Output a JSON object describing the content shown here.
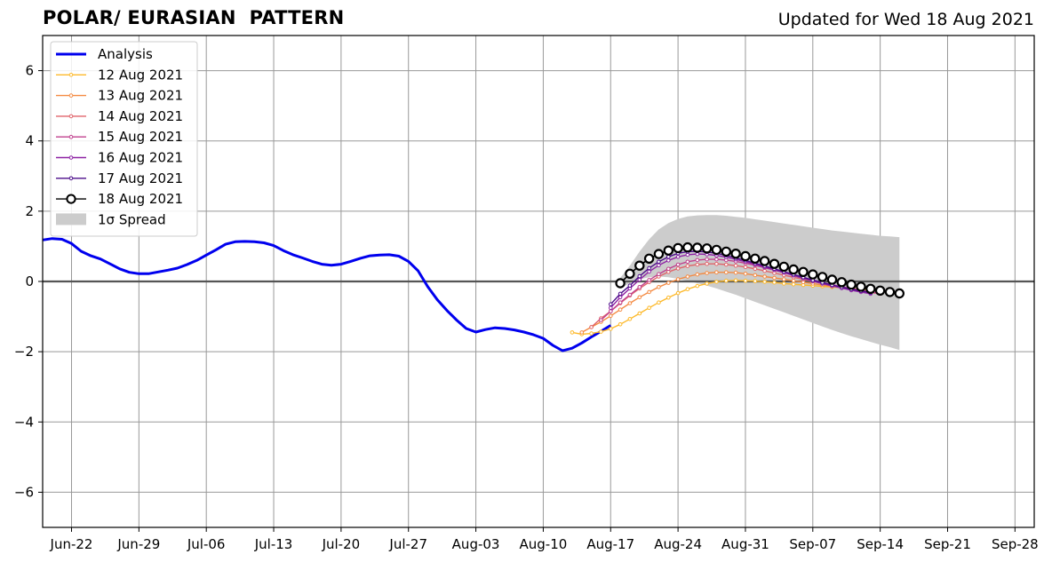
{
  "chart_data": {
    "type": "line",
    "title": "POLAR/ EURASIAN  PATTERN",
    "subtitle": "Updated for Wed 18 Aug 2021",
    "xlabel": "",
    "ylabel": "",
    "x_start": "2021-06-19",
    "x_end": "2021-09-30",
    "ylim": [
      -7,
      7
    ],
    "yticks": [
      -6,
      -4,
      -2,
      0,
      2,
      4,
      6
    ],
    "ytick_labels": [
      "−6",
      "−4",
      "−2",
      "0",
      "2",
      "4",
      "6"
    ],
    "xticks": [
      "2021-06-22",
      "2021-06-29",
      "2021-07-06",
      "2021-07-13",
      "2021-07-20",
      "2021-07-27",
      "2021-08-03",
      "2021-08-10",
      "2021-08-17",
      "2021-08-24",
      "2021-08-31",
      "2021-09-07",
      "2021-09-14",
      "2021-09-21",
      "2021-09-28"
    ],
    "xtick_labels": [
      "Jun-22",
      "Jun-29",
      "Jul-06",
      "Jul-13",
      "Jul-20",
      "Jul-27",
      "Aug-03",
      "Aug-10",
      "Aug-17",
      "Aug-24",
      "Aug-31",
      "Sep-07",
      "Sep-14",
      "Sep-21",
      "Sep-28"
    ],
    "grid": true,
    "legend_position": "top-left",
    "colors": {
      "analysis": "#0000ee",
      "spread": "#cccccc",
      "grid": "#999999",
      "zero_line": "#555555"
    },
    "analysis": {
      "name": "Analysis",
      "x_start": "2021-06-19",
      "values": [
        1.18,
        1.22,
        1.2,
        1.08,
        0.86,
        0.73,
        0.64,
        0.5,
        0.36,
        0.26,
        0.22,
        0.22,
        0.27,
        0.32,
        0.38,
        0.48,
        0.6,
        0.75,
        0.9,
        1.06,
        1.13,
        1.14,
        1.13,
        1.1,
        1.02,
        0.88,
        0.76,
        0.67,
        0.57,
        0.49,
        0.46,
        0.49,
        0.57,
        0.66,
        0.73,
        0.75,
        0.76,
        0.72,
        0.57,
        0.3,
        -0.15,
        -0.52,
        -0.83,
        -1.1,
        -1.34,
        -1.44,
        -1.37,
        -1.32,
        -1.34,
        -1.38,
        -1.44,
        -1.52,
        -1.62,
        -1.82,
        -1.97,
        -1.9,
        -1.75,
        -1.58,
        -1.42,
        -1.25
      ]
    },
    "spread": {
      "name": "1σ Spread",
      "x_start": "2021-08-18",
      "x_end": "2021-09-16",
      "upper": [
        0.1,
        0.45,
        0.85,
        1.2,
        1.48,
        1.66,
        1.78,
        1.85,
        1.88,
        1.89,
        1.89,
        1.87,
        1.84,
        1.81,
        1.77,
        1.73,
        1.69,
        1.65,
        1.61,
        1.57,
        1.53,
        1.49,
        1.45,
        1.42,
        1.39,
        1.36,
        1.33,
        1.3,
        1.28,
        1.26
      ],
      "lower": [
        -0.2,
        -0.05,
        0.06,
        0.12,
        0.14,
        0.12,
        0.07,
        0.02,
        -0.05,
        -0.12,
        -0.2,
        -0.29,
        -0.38,
        -0.48,
        -0.58,
        -0.68,
        -0.78,
        -0.88,
        -0.98,
        -1.08,
        -1.18,
        -1.28,
        -1.38,
        -1.47,
        -1.56,
        -1.64,
        -1.72,
        -1.8,
        -1.87,
        -1.95
      ]
    },
    "series": [
      {
        "name": "12 Aug 2021",
        "color": "#fdb92a",
        "marker": "dot",
        "x_start": "2021-08-13",
        "values": [
          -1.45,
          -1.5,
          -1.48,
          -1.43,
          -1.35,
          -1.22,
          -1.07,
          -0.91,
          -0.75,
          -0.6,
          -0.46,
          -0.33,
          -0.22,
          -0.13,
          -0.06,
          -0.01,
          0.02,
          0.03,
          0.02,
          0.01,
          -0.01,
          -0.03,
          -0.06,
          -0.08,
          -0.1,
          -0.12,
          -0.14,
          -0.16,
          -0.18,
          -0.2,
          -0.22,
          -0.24,
          -0.27,
          -0.3
        ]
      },
      {
        "name": "13 Aug 2021",
        "color": "#f48a42",
        "marker": "dot",
        "x_start": "2021-08-14",
        "values": [
          -1.45,
          -1.3,
          -1.15,
          -0.98,
          -0.8,
          -0.62,
          -0.45,
          -0.3,
          -0.16,
          -0.04,
          0.06,
          0.14,
          0.2,
          0.24,
          0.26,
          0.26,
          0.25,
          0.22,
          0.18,
          0.14,
          0.1,
          0.06,
          0.02,
          -0.02,
          -0.06,
          -0.1,
          -0.14,
          -0.18,
          -0.22,
          -0.26,
          -0.3,
          -0.33
        ]
      },
      {
        "name": "14 Aug 2021",
        "color": "#e0646a",
        "marker": "dot",
        "x_start": "2021-08-15",
        "values": [
          -1.3,
          -1.05,
          -0.85,
          -0.62,
          -0.4,
          -0.2,
          -0.02,
          0.14,
          0.27,
          0.37,
          0.44,
          0.48,
          0.5,
          0.5,
          0.48,
          0.45,
          0.41,
          0.36,
          0.3,
          0.24,
          0.18,
          0.12,
          0.06,
          0.0,
          -0.06,
          -0.12,
          -0.17,
          -0.22,
          -0.27,
          -0.31,
          -0.35
        ]
      },
      {
        "name": "15 Aug 2021",
        "color": "#c0408e",
        "marker": "dot",
        "x_start": "2021-08-16",
        "values": [
          -1.1,
          -0.85,
          -0.6,
          -0.38,
          -0.16,
          0.04,
          0.21,
          0.36,
          0.48,
          0.56,
          0.61,
          0.63,
          0.63,
          0.61,
          0.57,
          0.52,
          0.46,
          0.39,
          0.32,
          0.25,
          0.18,
          0.11,
          0.04,
          -0.03,
          -0.09,
          -0.15,
          -0.2,
          -0.25,
          -0.3,
          -0.34
        ]
      },
      {
        "name": "16 Aug 2021",
        "color": "#8e22a4",
        "marker": "dot",
        "x_start": "2021-08-17",
        "values": [
          -0.75,
          -0.45,
          -0.2,
          0.05,
          0.28,
          0.46,
          0.6,
          0.7,
          0.76,
          0.78,
          0.77,
          0.74,
          0.69,
          0.63,
          0.56,
          0.49,
          0.41,
          0.33,
          0.25,
          0.17,
          0.09,
          0.01,
          -0.06,
          -0.13,
          -0.19,
          -0.25,
          -0.3,
          -0.35
        ]
      },
      {
        "name": "17 Aug 2021",
        "color": "#4b0c8a",
        "marker": "dot",
        "x_start": "2021-08-17",
        "values": [
          -0.65,
          -0.35,
          -0.12,
          0.15,
          0.38,
          0.56,
          0.7,
          0.8,
          0.85,
          0.86,
          0.84,
          0.8,
          0.74,
          0.67,
          0.6,
          0.52,
          0.44,
          0.36,
          0.28,
          0.2,
          0.12,
          0.04,
          -0.03,
          -0.1,
          -0.16,
          -0.22,
          -0.27,
          -0.32
        ]
      },
      {
        "name": "18 Aug 2021",
        "color": "#000000",
        "marker": "circle",
        "x_start": "2021-08-18",
        "values": [
          -0.05,
          0.22,
          0.45,
          0.65,
          0.78,
          0.88,
          0.95,
          0.97,
          0.96,
          0.94,
          0.9,
          0.85,
          0.79,
          0.72,
          0.65,
          0.58,
          0.5,
          0.42,
          0.34,
          0.27,
          0.2,
          0.13,
          0.05,
          -0.02,
          -0.09,
          -0.15,
          -0.21,
          -0.26,
          -0.3,
          -0.34
        ]
      }
    ]
  }
}
